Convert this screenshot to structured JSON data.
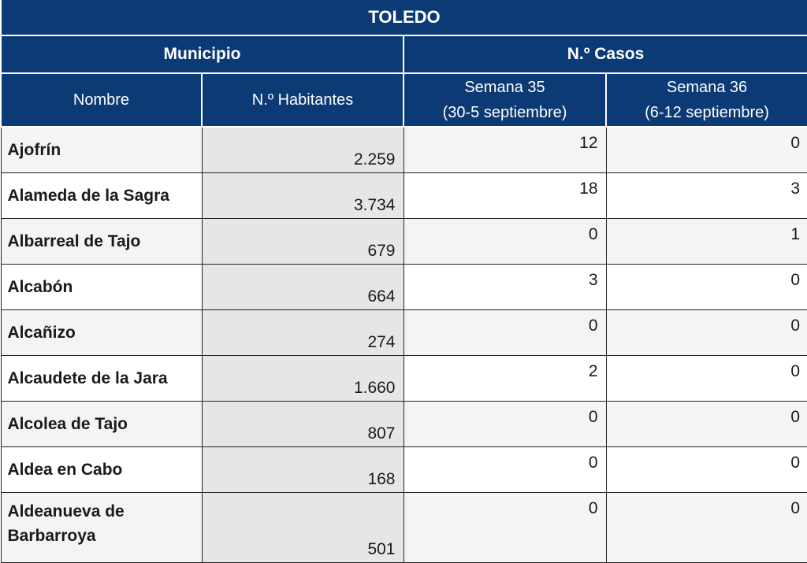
{
  "title": "TOLEDO",
  "groups": {
    "municipio": "Municipio",
    "casos": "N.º Casos"
  },
  "columns": {
    "nombre": "Nombre",
    "habitantes": "N.º Habitantes",
    "semana35_line1": "Semana 35",
    "semana35_line2": "(30-5 septiembre)",
    "semana36_line1": "Semana 36",
    "semana36_line2": "(6-12 septiembre)"
  },
  "rows": [
    {
      "nombre": "Ajofrín",
      "habitantes": "2.259",
      "s35": "12",
      "s36": "0"
    },
    {
      "nombre": "Alameda de la Sagra",
      "habitantes": "3.734",
      "s35": "18",
      "s36": "3"
    },
    {
      "nombre": "Albarreal de Tajo",
      "habitantes": "679",
      "s35": "0",
      "s36": "1"
    },
    {
      "nombre": "Alcabón",
      "habitantes": "664",
      "s35": "3",
      "s36": "0"
    },
    {
      "nombre": "Alcañizo",
      "habitantes": "274",
      "s35": "0",
      "s36": "0"
    },
    {
      "nombre": "Alcaudete de la Jara",
      "habitantes": "1.660",
      "s35": "2",
      "s36": "0"
    },
    {
      "nombre": "Alcolea de Tajo",
      "habitantes": "807",
      "s35": "0",
      "s36": "0"
    },
    {
      "nombre": "Aldea en Cabo",
      "habitantes": "168",
      "s35": "0",
      "s36": "0"
    },
    {
      "nombre": "Aldeanueva de Barbarroya",
      "habitantes": "501",
      "s35": "0",
      "s36": "0"
    }
  ]
}
